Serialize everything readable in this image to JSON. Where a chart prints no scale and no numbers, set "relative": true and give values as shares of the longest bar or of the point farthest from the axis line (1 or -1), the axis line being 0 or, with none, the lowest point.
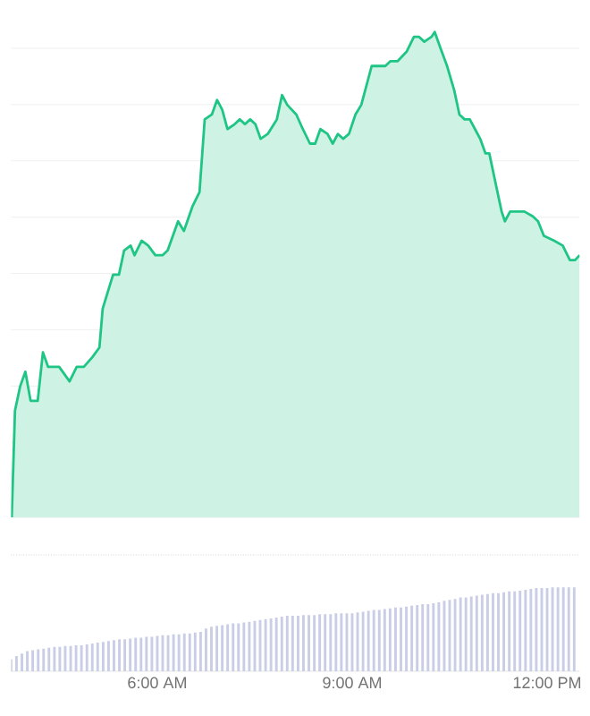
{
  "chart_data": [
    {
      "type": "area",
      "relative": true,
      "color": "#1fc585",
      "grid": true,
      "tick_labels": false,
      "xlim": [
        3.75,
        12.5
      ],
      "x": [
        3.76,
        3.81,
        3.89,
        3.97,
        4.05,
        4.16,
        4.24,
        4.32,
        4.49,
        4.65,
        4.76,
        4.87,
        5.0,
        5.11,
        5.16,
        5.32,
        5.41,
        5.49,
        5.59,
        5.65,
        5.76,
        5.86,
        5.97,
        6.08,
        6.16,
        6.24,
        6.32,
        6.41,
        6.54,
        6.65,
        6.73,
        6.84,
        6.92,
        7.0,
        7.08,
        7.19,
        7.27,
        7.35,
        7.43,
        7.51,
        7.59,
        7.7,
        7.84,
        7.92,
        8.0,
        8.14,
        8.24,
        8.35,
        8.43,
        8.51,
        8.62,
        8.7,
        8.78,
        8.86,
        8.95,
        9.05,
        9.14,
        9.3,
        9.41,
        9.51,
        9.59,
        9.7,
        9.84,
        9.95,
        10.03,
        10.11,
        10.22,
        10.27,
        10.35,
        10.46,
        10.57,
        10.65,
        10.73,
        10.81,
        10.89,
        10.97,
        11.05,
        11.11,
        11.22,
        11.3,
        11.35,
        11.43,
        11.54,
        11.65,
        11.78,
        11.86,
        11.95,
        12.11,
        12.24,
        12.35,
        12.43,
        12.5
      ],
      "values": [
        0,
        0.22,
        0.27,
        0.3,
        0.24,
        0.24,
        0.34,
        0.31,
        0.31,
        0.28,
        0.31,
        0.31,
        0.33,
        0.35,
        0.43,
        0.5,
        0.5,
        0.55,
        0.56,
        0.54,
        0.57,
        0.56,
        0.54,
        0.54,
        0.55,
        0.58,
        0.61,
        0.59,
        0.64,
        0.67,
        0.82,
        0.83,
        0.86,
        0.84,
        0.8,
        0.81,
        0.82,
        0.81,
        0.82,
        0.81,
        0.78,
        0.79,
        0.82,
        0.87,
        0.85,
        0.83,
        0.8,
        0.77,
        0.77,
        0.8,
        0.79,
        0.77,
        0.79,
        0.78,
        0.79,
        0.83,
        0.85,
        0.93,
        0.93,
        0.93,
        0.94,
        0.94,
        0.96,
        0.99,
        0.99,
        0.98,
        0.99,
        1.0,
        0.97,
        0.93,
        0.88,
        0.83,
        0.82,
        0.82,
        0.8,
        0.78,
        0.75,
        0.75,
        0.68,
        0.63,
        0.61,
        0.63,
        0.63,
        0.63,
        0.62,
        0.61,
        0.58,
        0.57,
        0.56,
        0.53,
        0.53,
        0.54
      ]
    },
    {
      "type": "bar",
      "relative": true,
      "color": "#c9cee6",
      "tick_labels": "x",
      "xlim": [
        3.75,
        12.5
      ],
      "xticks": [
        {
          "value": 6,
          "label": "6:00 AM"
        },
        {
          "value": 9,
          "label": "9:00 AM"
        },
        {
          "value": 12,
          "label": "12:00 PM"
        }
      ],
      "x": [
        3.75,
        3.833,
        3.917,
        4,
        4.083,
        4.167,
        4.25,
        4.333,
        4.417,
        4.5,
        4.583,
        4.667,
        4.75,
        4.833,
        4.917,
        5,
        5.083,
        5.167,
        5.25,
        5.333,
        5.417,
        5.5,
        5.583,
        5.667,
        5.75,
        5.833,
        5.917,
        6,
        6.083,
        6.167,
        6.25,
        6.333,
        6.417,
        6.5,
        6.583,
        6.667,
        6.75,
        6.833,
        6.917,
        7,
        7.083,
        7.167,
        7.25,
        7.333,
        7.417,
        7.5,
        7.583,
        7.667,
        7.75,
        7.833,
        7.917,
        8,
        8.083,
        8.167,
        8.25,
        8.333,
        8.417,
        8.5,
        8.583,
        8.667,
        8.75,
        8.833,
        8.917,
        9,
        9.083,
        9.167,
        9.25,
        9.333,
        9.417,
        9.5,
        9.583,
        9.667,
        9.75,
        9.833,
        9.917,
        10,
        10.083,
        10.167,
        10.25,
        10.333,
        10.417,
        10.5,
        10.583,
        10.667,
        10.75,
        10.833,
        10.917,
        11,
        11.083,
        11.167,
        11.25,
        11.333,
        11.417,
        11.5,
        11.583,
        11.667,
        11.75,
        11.833,
        11.917,
        12,
        12.083,
        12.167,
        12.25,
        12.333,
        12.417
      ],
      "values": [
        0.14,
        0.18,
        0.21,
        0.24,
        0.25,
        0.26,
        0.27,
        0.28,
        0.29,
        0.29,
        0.3,
        0.3,
        0.31,
        0.31,
        0.32,
        0.33,
        0.34,
        0.35,
        0.36,
        0.37,
        0.38,
        0.38,
        0.39,
        0.4,
        0.4,
        0.41,
        0.41,
        0.42,
        0.43,
        0.43,
        0.44,
        0.44,
        0.45,
        0.45,
        0.46,
        0.47,
        0.51,
        0.53,
        0.54,
        0.55,
        0.56,
        0.57,
        0.57,
        0.58,
        0.59,
        0.6,
        0.61,
        0.62,
        0.63,
        0.64,
        0.65,
        0.66,
        0.66,
        0.66,
        0.67,
        0.67,
        0.67,
        0.68,
        0.68,
        0.68,
        0.69,
        0.69,
        0.69,
        0.69,
        0.7,
        0.71,
        0.72,
        0.73,
        0.73,
        0.74,
        0.75,
        0.76,
        0.76,
        0.77,
        0.78,
        0.79,
        0.8,
        0.8,
        0.81,
        0.82,
        0.84,
        0.85,
        0.86,
        0.88,
        0.88,
        0.89,
        0.9,
        0.91,
        0.92,
        0.93,
        0.93,
        0.94,
        0.95,
        0.95,
        0.96,
        0.97,
        0.98,
        0.99,
        0.99,
        0.99,
        1.0,
        1.0,
        1.0,
        1.0,
        1.0
      ]
    }
  ]
}
